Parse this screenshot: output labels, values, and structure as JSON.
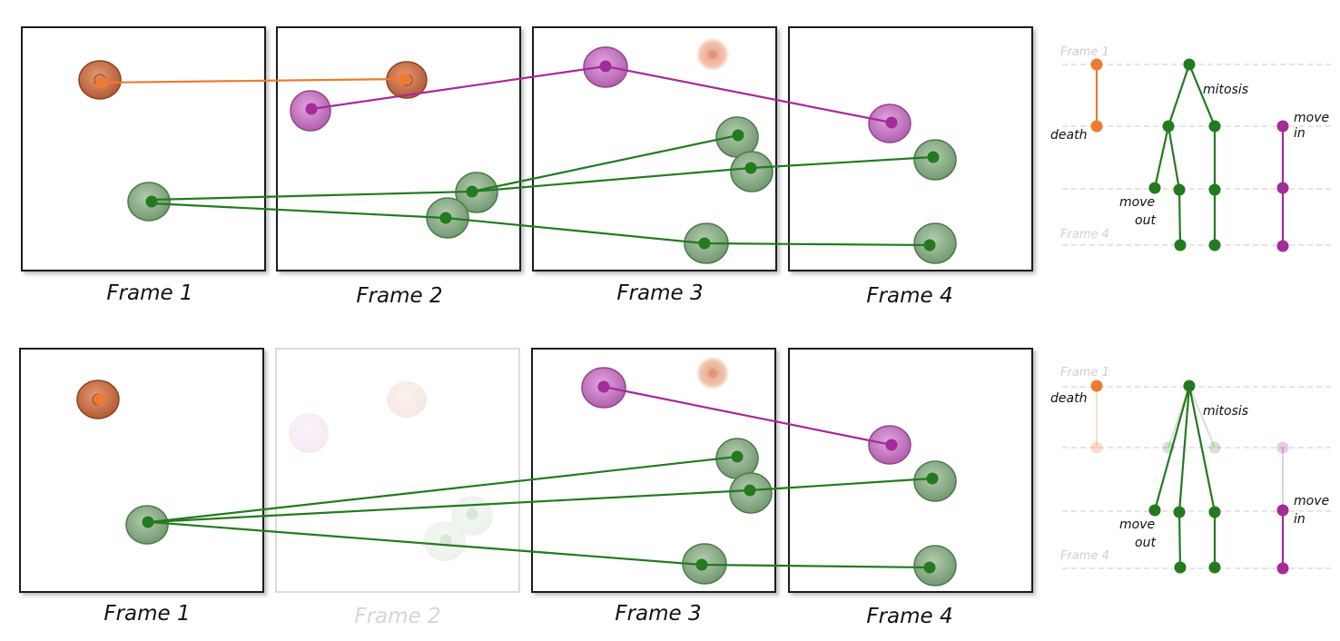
{
  "colors": {
    "orange": "#ee7a30",
    "purple": "#a52a9a",
    "green": "#237a1f",
    "cell_orange_fill": "#c46b45",
    "cell_purple_fill": "#c779c2",
    "cell_green_fill": "#88ad86"
  },
  "top_panel": {
    "frames": [
      {
        "label": "Frame 1"
      },
      {
        "label": "Frame 2"
      },
      {
        "label": "Frame 3"
      },
      {
        "label": "Frame 4"
      }
    ]
  },
  "bottom_panel": {
    "frames": [
      {
        "label": "Frame 1"
      },
      {
        "label": "Frame 2",
        "faded": true
      },
      {
        "label": "Frame 3"
      },
      {
        "label": "Frame 4"
      }
    ]
  },
  "lineage_top": {
    "frame_first": "Frame 1",
    "frame_last": "Frame 4",
    "death": "death",
    "mitosis": "mitosis",
    "move_out_1": "move",
    "move_out_2": "out",
    "move_in_1": "move",
    "move_in_2": "in"
  },
  "lineage_bottom": {
    "frame_first": "Frame 1",
    "frame_last": "Frame 4",
    "death": "death",
    "mitosis": "mitosis",
    "move_out_1": "move",
    "move_out_2": "out",
    "move_in_1": "move",
    "move_in_2": "in"
  }
}
